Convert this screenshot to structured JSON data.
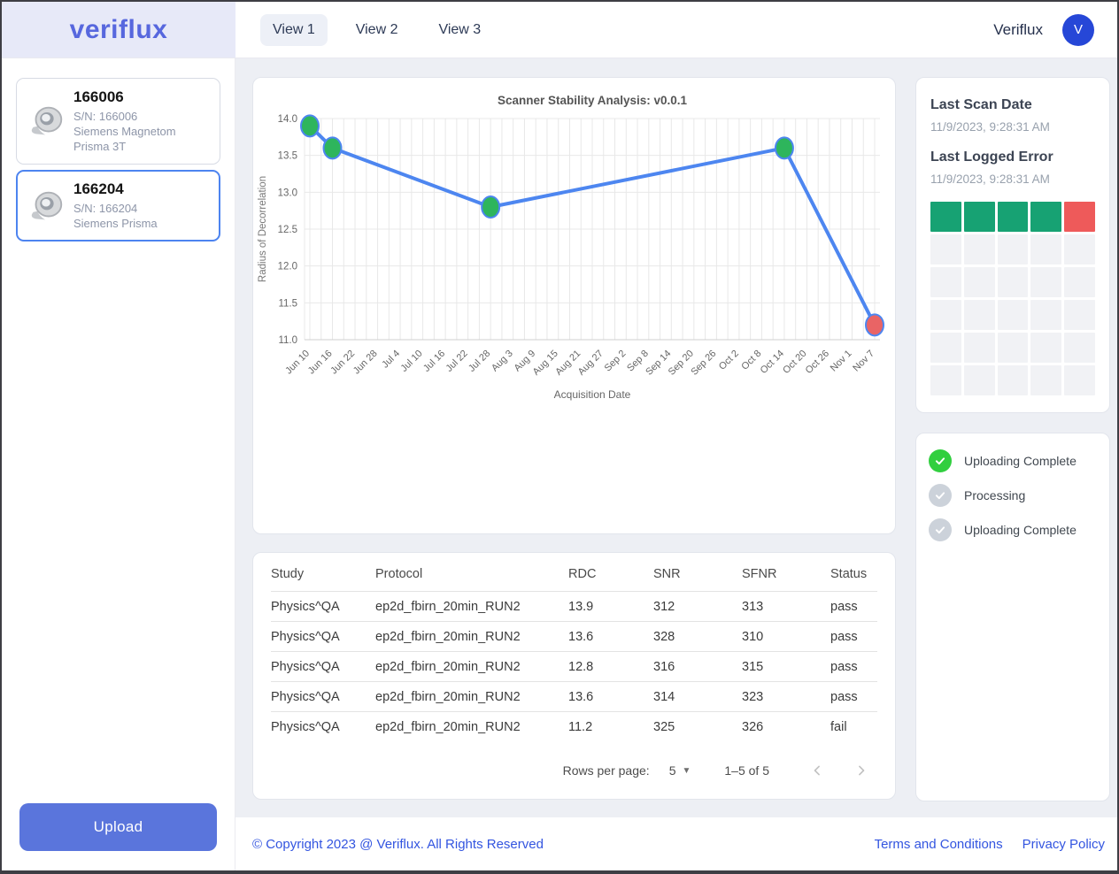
{
  "header": {
    "logo": "veriflux",
    "tabs": [
      {
        "label": "View 1",
        "active": true
      },
      {
        "label": "View 2",
        "active": false
      },
      {
        "label": "View 3",
        "active": false
      }
    ],
    "account_name": "Veriflux",
    "avatar_letter": "V"
  },
  "sidebar": {
    "scanners": [
      {
        "name": "166006",
        "serial": "S/N: 166006",
        "model": "Siemens Magnetom Prisma 3T",
        "selected": false
      },
      {
        "name": "166204",
        "serial": "S/N: 166204",
        "model": "Siemens Prisma",
        "selected": true
      }
    ],
    "upload_label": "Upload"
  },
  "chart_data": {
    "type": "line",
    "title": "Scanner Stability Analysis: v0.0.1",
    "xlabel": "Acquisition Date",
    "ylabel": "Radius of Decorrelation",
    "ylim": [
      11.0,
      14.0
    ],
    "ytick_step": 0.5,
    "grid": true,
    "legend": "none",
    "categories": [
      "Jun 10",
      "Jun 16",
      "Jun 22",
      "Jun 28",
      "Jul 4",
      "Jul 10",
      "Jul 16",
      "Jul 22",
      "Jul 28",
      "Aug 3",
      "Aug 9",
      "Aug 15",
      "Aug 21",
      "Aug 27",
      "Sep 2",
      "Sep 8",
      "Sep 14",
      "Sep 20",
      "Sep 26",
      "Oct 2",
      "Oct 8",
      "Oct 14",
      "Oct 20",
      "Oct 26",
      "Nov 1",
      "Nov 7"
    ],
    "points": [
      {
        "date": "Jun 10",
        "value": 13.9,
        "status": "pass"
      },
      {
        "date": "Jun 16",
        "value": 13.6,
        "status": "pass"
      },
      {
        "date": "Jul 28",
        "value": 12.8,
        "status": "pass"
      },
      {
        "date": "Oct 14",
        "value": 13.6,
        "status": "pass"
      },
      {
        "date": "Nov 7",
        "value": 11.2,
        "status": "fail"
      }
    ],
    "colors": {
      "line": "#4d86f0",
      "marker_pass": "#2eb55c",
      "marker_fail": "#e96465",
      "grid": "#e8e8e8",
      "axis": "#cfcfcf",
      "tick_text": "#666666",
      "title_text": "#555555"
    }
  },
  "results_table": {
    "headers": [
      "Study",
      "Protocol",
      "RDC",
      "SNR",
      "SFNR",
      "Status"
    ],
    "rows": [
      [
        "Physics^QA",
        "ep2d_fbirn_20min_RUN2",
        "13.9",
        "312",
        "313",
        "pass"
      ],
      [
        "Physics^QA",
        "ep2d_fbirn_20min_RUN2",
        "13.6",
        "328",
        "310",
        "pass"
      ],
      [
        "Physics^QA",
        "ep2d_fbirn_20min_RUN2",
        "12.8",
        "316",
        "315",
        "pass"
      ],
      [
        "Physics^QA",
        "ep2d_fbirn_20min_RUN2",
        "13.6",
        "314",
        "323",
        "pass"
      ],
      [
        "Physics^QA",
        "ep2d_fbirn_20min_RUN2",
        "11.2",
        "325",
        "326",
        "fail"
      ]
    ],
    "pagination": {
      "rows_per_page_label": "Rows per page:",
      "rows_per_page_value": "5",
      "range_label": "1–5 of 5"
    }
  },
  "scan_info": {
    "last_scan_date_label": "Last Scan Date",
    "last_scan_date": "11/9/2023, 9:28:31 AM",
    "last_error_label": "Last Logged Error",
    "last_error_date": "11/9/2023, 9:28:31 AM",
    "heatmap": {
      "columns": 5,
      "rows": [
        [
          "ok",
          "ok",
          "ok",
          "ok",
          "error"
        ],
        [
          "empty",
          "empty",
          "empty",
          "empty",
          "empty"
        ],
        [
          "empty",
          "empty",
          "empty",
          "empty",
          "empty"
        ],
        [
          "empty",
          "empty",
          "empty",
          "empty",
          "empty"
        ],
        [
          "empty",
          "empty",
          "empty",
          "empty",
          "empty"
        ],
        [
          "empty",
          "empty",
          "empty",
          "empty",
          "empty"
        ]
      ],
      "colors": {
        "ok": "#17a273",
        "error": "#ee5a5a",
        "empty": "#f1f2f5"
      }
    }
  },
  "status_panel": {
    "items": [
      {
        "label": "Uploading Complete",
        "state": "complete"
      },
      {
        "label": "Processing",
        "state": "pending"
      },
      {
        "label": "Uploading Complete",
        "state": "pending"
      }
    ],
    "colors": {
      "complete": "#31cf3f",
      "pending": "#ccd2da"
    }
  },
  "footer": {
    "copyright": "© Copyright 2023 @ Veriflux. All Rights Reserved",
    "links": [
      "Terms and Conditions",
      "Privacy Policy"
    ]
  }
}
